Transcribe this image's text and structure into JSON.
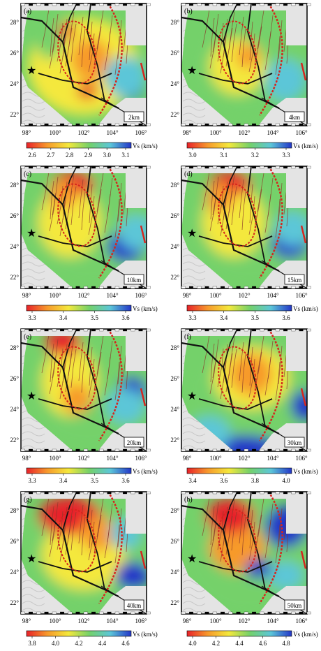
{
  "panels": [
    {
      "letter": "(a)",
      "depth": "2km",
      "cb_ticks": [
        "2.6",
        "2.7",
        "2.8",
        "2.9",
        "3.0",
        "3.1"
      ],
      "unit": "Vs (km/s)",
      "show_lat": true
    },
    {
      "letter": "(b)",
      "depth": "4km",
      "cb_ticks": [
        "3.0",
        "3.1",
        "3.2",
        "3.3"
      ],
      "unit": "Vs (km/s)",
      "show_lat": true
    },
    {
      "letter": "(c)",
      "depth": "10km",
      "cb_ticks": [
        "3.3",
        "3.4",
        "3.5",
        "3.6"
      ],
      "unit": "Vs (km/s)",
      "show_lat": true
    },
    {
      "letter": "(d)",
      "depth": "15km",
      "cb_ticks": [
        "3.3",
        "3.4",
        "3.5",
        "3.6"
      ],
      "unit": "Vs (km/s)",
      "show_lat": true
    },
    {
      "letter": "(e)",
      "depth": "20km",
      "cb_ticks": [
        "3.3",
        "3.4",
        "3.5",
        "3.6"
      ],
      "unit": "Vs (km/s)",
      "show_lat": true
    },
    {
      "letter": "(f)",
      "depth": "30km",
      "cb_ticks": [
        "3.4",
        "3.6",
        "3.8",
        "4.0"
      ],
      "unit": "Vs (km/s)",
      "show_lat": true
    },
    {
      "letter": "(g)",
      "depth": "40km",
      "cb_ticks": [
        "3.8",
        "4.0",
        "4.2",
        "4.4",
        "4.6"
      ],
      "unit": "Vs (km/s)",
      "show_lat": true
    },
    {
      "letter": "(h)",
      "depth": "50km",
      "cb_ticks": [
        "4.0",
        "4.2",
        "4.4",
        "4.6",
        "4.8"
      ],
      "unit": "Vs (km/s)",
      "show_lat": true
    }
  ],
  "lon_ticks": [
    "98°",
    "100°",
    "102°",
    "104°",
    "106°"
  ],
  "lat_ticks": [
    "28°",
    "26°",
    "24°",
    "22°"
  ],
  "colors": {
    "red": "#e8222a",
    "orange": "#f79a2c",
    "yellow": "#f4e83c",
    "green": "#74d16a",
    "cyan": "#5cc6d8",
    "blue": "#2336c8",
    "fault_brown": "#8b3a2a",
    "fault_red": "#d5261e",
    "boundary_black": "#111111"
  },
  "icons": {
    "star": "black-star-marker"
  }
}
